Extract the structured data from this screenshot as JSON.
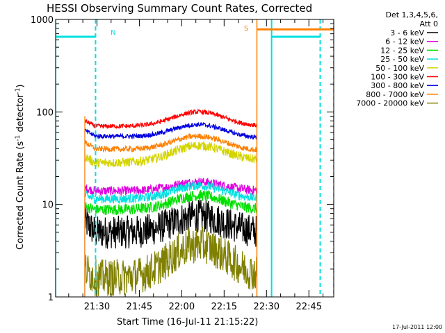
{
  "chart_data": {
    "type": "line",
    "title": "HESSI Observing Summary Count Rates, Corrected",
    "xlabel": "Start Time (16-Jul-11 21:15:22)",
    "ylabel_main": "Corrected Count Rate (s",
    "ylabel_sup1": "-1",
    "ylabel_mid": " detector",
    "ylabel_sup2": "-1",
    "ylabel_end": ")",
    "yscale": "log",
    "ylim": [
      1,
      1000
    ],
    "y_ticks": [
      {
        "value": 1,
        "label": "1"
      },
      {
        "value": 10,
        "label": "10"
      },
      {
        "value": 100,
        "label": "100"
      },
      {
        "value": 1000,
        "label": "1000"
      }
    ],
    "x_ticks": [
      "21:30",
      "21:45",
      "22:00",
      "22:15",
      "22:30",
      "22:45"
    ],
    "x_tick_minutes": [
      30,
      45,
      60,
      75,
      90,
      105
    ],
    "x_range_minutes": [
      15.37,
      113.8
    ],
    "footer_date": "17-Jul-2011 12:00",
    "legend": {
      "header_line1": "Det 1,3,4,5,6,",
      "header_line2": "Att 0"
    },
    "night_markers": {
      "N_label": "N",
      "S_label": "S",
      "N_intervals_minutes": [
        [
          15.37,
          29.5
        ],
        [
          91.8,
          109.0
        ]
      ],
      "S_interval_minutes": [
        86.6,
        113.8
      ],
      "N_level": 650,
      "S_level": 780
    },
    "data_window_minutes": [
      25.7,
      86.6
    ],
    "series": [
      {
        "name": "3 - 6 keV",
        "color": "#000000",
        "start": 6.5,
        "base": 5.0,
        "peak": 7.5,
        "end": 5.0,
        "noise": 0.18
      },
      {
        "name": "6 - 12 keV",
        "color": "#e000e0",
        "start": 15.0,
        "base": 14.0,
        "peak": 17.5,
        "end": 14.0,
        "noise": 0.05
      },
      {
        "name": "12 - 25 keV",
        "color": "#00e000",
        "start": 9.5,
        "base": 8.8,
        "peak": 12.5,
        "end": 8.8,
        "noise": 0.06
      },
      {
        "name": "25 - 50 keV",
        "color": "#00e0e0",
        "start": 12.5,
        "base": 11.5,
        "peak": 16.0,
        "end": 11.5,
        "noise": 0.05
      },
      {
        "name": "50 - 100 keV",
        "color": "#d4d400",
        "start": 33.0,
        "base": 28.0,
        "peak": 42.0,
        "end": 30.0,
        "noise": 0.05
      },
      {
        "name": "100 - 300 keV",
        "color": "#ff0000",
        "start": 80.0,
        "base": 70.0,
        "peak": 100.0,
        "end": 70.0,
        "noise": 0.025
      },
      {
        "name": "300 - 800 keV",
        "color": "#0000e0",
        "start": 63.0,
        "base": 55.0,
        "peak": 75.0,
        "end": 52.0,
        "noise": 0.025
      },
      {
        "name": "800 - 7000 keV",
        "color": "#ff8000",
        "start": 47.0,
        "base": 40.0,
        "peak": 56.0,
        "end": 38.0,
        "noise": 0.03
      },
      {
        "name": "7000 - 20000 keV",
        "color": "#808000",
        "start": 2.0,
        "base": 1.6,
        "peak": 3.6,
        "end": 1.7,
        "noise": 0.2
      }
    ]
  }
}
